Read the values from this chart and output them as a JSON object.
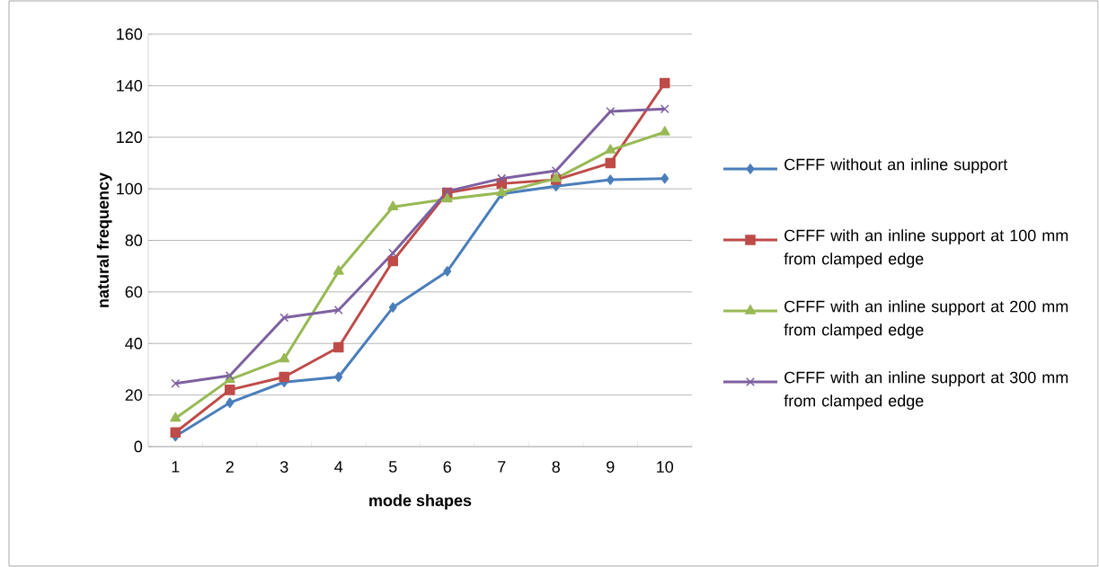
{
  "chart_data": {
    "type": "line",
    "xlabel": "mode shapes",
    "ylabel": "natural frequency",
    "categories": [
      "1",
      "2",
      "3",
      "4",
      "5",
      "6",
      "7",
      "8",
      "9",
      "10"
    ],
    "series": [
      {
        "name": "CFFF without an inline support",
        "color": "#4a7ebb",
        "marker": "diamond",
        "values": [
          4,
          17,
          25,
          27,
          54,
          68,
          98,
          101,
          103.5,
          104
        ]
      },
      {
        "name": "CFFF with an inline support at 100 mm from clamped edge",
        "color": "#be4b48",
        "marker": "square",
        "values": [
          5.5,
          22,
          27,
          38.5,
          72,
          98.5,
          102,
          103.5,
          110,
          141
        ]
      },
      {
        "name": "CFFF with an inline support at 200 mm from clamped edge",
        "color": "#98b954",
        "marker": "triangle",
        "values": [
          11,
          26,
          34,
          68,
          93,
          96,
          98.5,
          104,
          115,
          122
        ]
      },
      {
        "name": "CFFF with an inline support at 300 mm from clamped edge",
        "color": "#7d60a0",
        "marker": "cross",
        "values": [
          24.5,
          27.5,
          50,
          53,
          75,
          99,
          104,
          107,
          130,
          131
        ]
      }
    ],
    "ylim": [
      0,
      160
    ],
    "yticks": [
      0,
      20,
      40,
      60,
      80,
      100,
      120,
      140,
      160
    ],
    "grid": "y",
    "legend": "right",
    "line_style": "solid"
  }
}
